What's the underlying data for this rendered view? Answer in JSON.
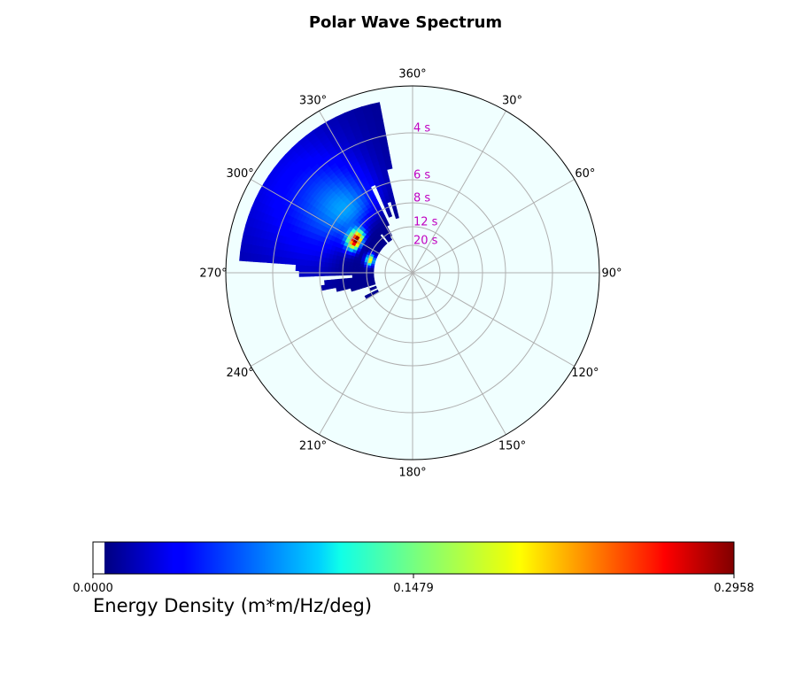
{
  "chart_data": {
    "type": "heatmap",
    "projection": "polar",
    "title": "Polar Wave Spectrum",
    "theta_direction": "clockwise",
    "theta_zero": "north",
    "angle_ticks": [
      "360°",
      "30°",
      "60°",
      "90°",
      "120°",
      "150°",
      "180°",
      "210°",
      "240°",
      "270°",
      "300°",
      "330°"
    ],
    "period_ring_labels": [
      "4 s",
      "6 s",
      "8 s",
      "12 s",
      "20 s"
    ],
    "ring_label_color": "#c000c0",
    "background_color": "#f0ffff",
    "grid": true,
    "colormap": "jet",
    "colorbar": {
      "label": "Energy Density (m*m/Hz/deg)",
      "tick_labels": [
        "0.0000",
        "0.1479",
        "0.2958"
      ],
      "vmin": 0.0,
      "vmax": 0.2958,
      "placement": "bottom"
    },
    "energy_blobs": [
      {
        "direction_deg": 300,
        "period_s": 8.5,
        "peak": 0.2958,
        "dir_spread_deg": 6,
        "period_spread_s": 0.6
      },
      {
        "direction_deg": 287,
        "period_s": 12.5,
        "peak": 0.19,
        "dir_spread_deg": 5,
        "period_spread_s": 0.8
      },
      {
        "direction_deg": 315,
        "period_s": 6.2,
        "peak": 0.06,
        "dir_spread_deg": 14,
        "period_spread_s": 1.4
      },
      {
        "direction_deg": 300,
        "period_s": 5.0,
        "peak": 0.035,
        "dir_spread_deg": 22,
        "period_spread_s": 1.6
      }
    ],
    "nonzero_sector": {
      "direction_min_deg": 235,
      "direction_max_deg": 352,
      "period_min_s": 3.2,
      "period_max_s": 14
    }
  }
}
